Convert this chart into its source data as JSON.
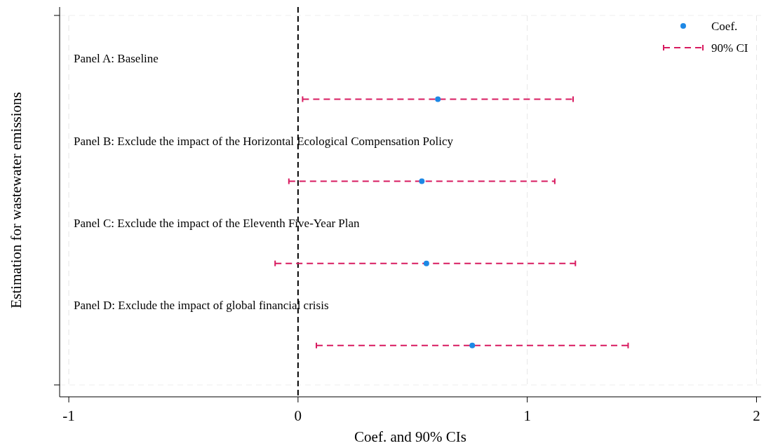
{
  "chart_data": {
    "type": "scatter",
    "orientation": "horizontal",
    "xlabel": "Coef. and 90% CIs",
    "ylabel": "Estimation for wastewater emissions",
    "categories": [
      "Panel A: Baseline",
      "Panel B: Exclude the impact of the Horizontal Ecological Compensation Policy",
      "Panel C: Exclude the impact of the Eleventh Five-Year Plan",
      "Panel D: Exclude the impact of global financial crisis"
    ],
    "series": [
      {
        "name": "Coef.",
        "color": "#1e88e5",
        "values": [
          0.61,
          0.54,
          0.56,
          0.76
        ],
        "errors": [
          [
            0.02,
            1.2
          ],
          [
            -0.04,
            1.12
          ],
          [
            -0.1,
            1.21
          ],
          [
            0.08,
            1.44
          ]
        ]
      }
    ],
    "annotations": [
      "90% CI"
    ],
    "xlim": [
      -1.04,
      2.02
    ],
    "xticks": [
      -1,
      0,
      1,
      2
    ],
    "grid": "x",
    "marker": "circle",
    "legend": "top right",
    "ref_lines": [
      {
        "axis": "x",
        "value": 0,
        "color": "#000000",
        "line_style": "dashed"
      }
    ]
  }
}
